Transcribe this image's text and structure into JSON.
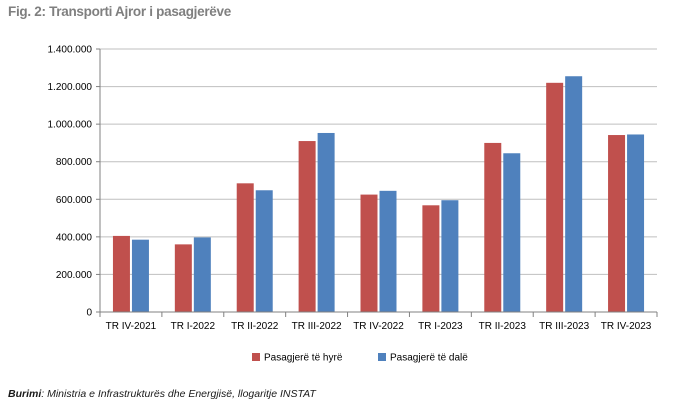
{
  "figure": {
    "title": "Fig. 2: Transporti Ajror i pasagjerëve",
    "source_label": "Burimi",
    "source_text": ": Ministria e Infrastrukturës dhe Energjisë, llogaritje INSTAT"
  },
  "chart_data": {
    "type": "bar",
    "title": "",
    "xlabel": "",
    "ylabel": "",
    "categories": [
      "TR IV-2021",
      "TR I-2022",
      "TR II-2022",
      "TR III-2022",
      "TR IV-2022",
      "TR I-2023",
      "TR II-2023",
      "TR III-2023",
      "TR IV-2023"
    ],
    "series": [
      {
        "name": "Pasagjerë të hyrë",
        "color": "#c0504d",
        "values": [
          405000,
          360000,
          685000,
          910000,
          625000,
          568000,
          900000,
          1220000,
          942000
        ]
      },
      {
        "name": "Pasagjerë të dalë",
        "color": "#4f81bd",
        "values": [
          385000,
          397000,
          648000,
          953000,
          645000,
          595000,
          845000,
          1255000,
          945000
        ]
      }
    ],
    "ylim": [
      0,
      1400000
    ],
    "yticks": [
      0,
      200000,
      400000,
      600000,
      800000,
      1000000,
      1200000,
      1400000
    ],
    "ytick_labels": [
      "0",
      "200.000",
      "400.000",
      "600.000",
      "800.000",
      "1.000.000",
      "1.200.000",
      "1.400.000"
    ],
    "grid": true,
    "legend_position": "bottom"
  }
}
